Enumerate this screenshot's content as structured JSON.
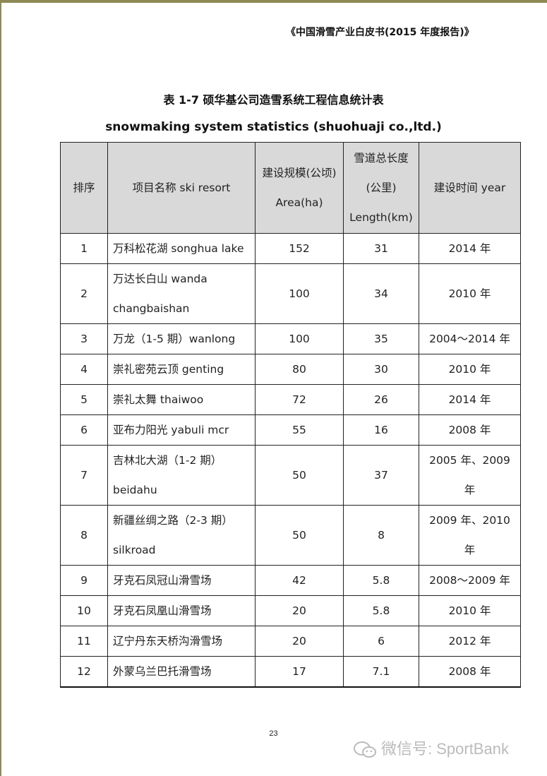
{
  "running_header": "《中国滑雪产业白皮书(2015 年度报告)》",
  "title_cn": "表 1-7  硕华基公司造雪系统工程信息统计表",
  "title_en": "snowmaking system statistics (shuohuaji co.,ltd.)",
  "table": {
    "headers": [
      [
        "排序"
      ],
      [
        "项目名称 ski resort"
      ],
      [
        "建设规模(公顷)",
        "Area(ha)"
      ],
      [
        "雪道总长度",
        "(公里)",
        "Length(km)"
      ],
      [
        "建设时间 year"
      ]
    ],
    "rows": [
      {
        "no": "1",
        "name": [
          "万科松花湖 songhua lake"
        ],
        "area": "152",
        "length": "31",
        "year": "2014 年"
      },
      {
        "no": "2",
        "name": [
          "万达长白山 wanda",
          "changbaishan"
        ],
        "area": "100",
        "length": "34",
        "year": "2010 年"
      },
      {
        "no": "3",
        "name": [
          "万龙（1-5 期）wanlong"
        ],
        "area": "100",
        "length": "35",
        "year": "2004～2014 年"
      },
      {
        "no": "4",
        "name": [
          "崇礼密苑云顶 genting"
        ],
        "area": "80",
        "length": "30",
        "year": "2010 年"
      },
      {
        "no": "5",
        "name": [
          "崇礼太舞 thaiwoo"
        ],
        "area": "72",
        "length": "26",
        "year": "2014 年"
      },
      {
        "no": "6",
        "name": [
          "亚布力阳光 yabuli mcr"
        ],
        "area": "55",
        "length": "16",
        "year": "2008 年"
      },
      {
        "no": "7",
        "name": [
          "吉林北大湖（1-2 期）",
          "beidahu"
        ],
        "area": "50",
        "length": "37",
        "year": "2005 年、2009 年"
      },
      {
        "no": "8",
        "name": [
          "新疆丝绸之路（2-3 期）",
          "silkroad"
        ],
        "area": "50",
        "length": "8",
        "year": "2009 年、2010 年"
      },
      {
        "no": "9",
        "name": [
          "牙克石凤冠山滑雪场"
        ],
        "area": "42",
        "length": "5.8",
        "year": "2008～2009 年"
      },
      {
        "no": "10",
        "name": [
          "牙克石凤凰山滑雪场"
        ],
        "area": "20",
        "length": "5.8",
        "year": "2010 年"
      },
      {
        "no": "11",
        "name": [
          "辽宁丹东天桥沟滑雪场"
        ],
        "area": "20",
        "length": "6",
        "year": "2012 年"
      },
      {
        "no": "12",
        "name": [
          "外蒙乌兰巴托滑雪场"
        ],
        "area": "17",
        "length": "7.1",
        "year": "2008 年"
      }
    ]
  },
  "page_number": "23",
  "watermark": "微信号: SportBank",
  "colors": {
    "frame": "#8f8a55",
    "header_bg": "#d9d9d9"
  }
}
